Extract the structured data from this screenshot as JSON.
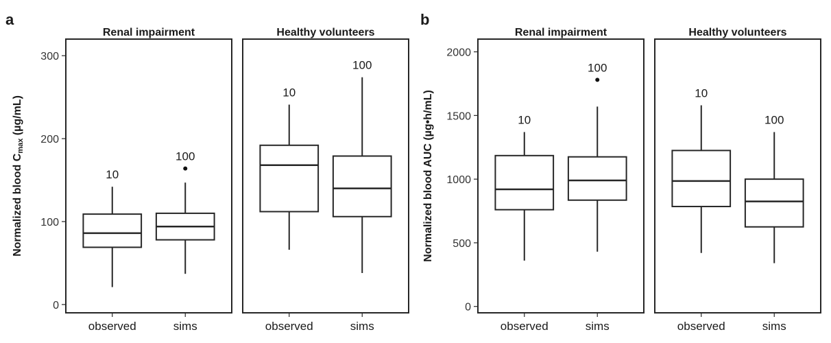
{
  "chart_data": [
    {
      "type": "boxplot",
      "panel_label": "a",
      "ylabel_main": "Normalized blood C",
      "ylabel_sub": "max",
      "ylabel_unit": " (µg/mL)",
      "yticks": [
        "0",
        "100",
        "200",
        "300"
      ],
      "ylim": [
        -10,
        320
      ],
      "facets": [
        {
          "title": "Renal impairment",
          "boxes": [
            {
              "category": "observed",
              "n": "10",
              "whisker_low": 21,
              "q1": 69,
              "median": 86,
              "q3": 109,
              "whisker_high": 142,
              "outliers": []
            },
            {
              "category": "sims",
              "n": "100",
              "whisker_low": 37,
              "q1": 78,
              "median": 94,
              "q3": 110,
              "whisker_high": 147,
              "outliers": [
                164
              ]
            }
          ]
        },
        {
          "title": "Healthy volunteers",
          "boxes": [
            {
              "category": "observed",
              "n": "10",
              "whisker_low": 66,
              "q1": 112,
              "median": 168,
              "q3": 192,
              "whisker_high": 241,
              "outliers": []
            },
            {
              "category": "sims",
              "n": "100",
              "whisker_low": 38,
              "q1": 106,
              "median": 140,
              "q3": 179,
              "whisker_high": 274,
              "outliers": []
            }
          ]
        }
      ]
    },
    {
      "type": "boxplot",
      "panel_label": "b",
      "ylabel_main": "Normalized blood AUC (µg•h/mL)",
      "ylabel_sub": "",
      "ylabel_unit": "",
      "yticks": [
        "0",
        "500",
        "1000",
        "1500",
        "2000"
      ],
      "ylim": [
        -50,
        2100
      ],
      "facets": [
        {
          "title": "Renal impairment",
          "boxes": [
            {
              "category": "observed",
              "n": "10",
              "whisker_low": 360,
              "q1": 760,
              "median": 920,
              "q3": 1185,
              "whisker_high": 1370,
              "outliers": []
            },
            {
              "category": "sims",
              "n": "100",
              "whisker_low": 430,
              "q1": 835,
              "median": 990,
              "q3": 1175,
              "whisker_high": 1570,
              "outliers": [
                1780
              ]
            }
          ]
        },
        {
          "title": "Healthy volunteers",
          "boxes": [
            {
              "category": "observed",
              "n": "10",
              "whisker_low": 420,
              "q1": 785,
              "median": 985,
              "q3": 1225,
              "whisker_high": 1580,
              "outliers": []
            },
            {
              "category": "sims",
              "n": "100",
              "whisker_low": 340,
              "q1": 625,
              "median": 825,
              "q3": 1000,
              "whisker_high": 1370,
              "outliers": []
            }
          ]
        }
      ]
    }
  ]
}
